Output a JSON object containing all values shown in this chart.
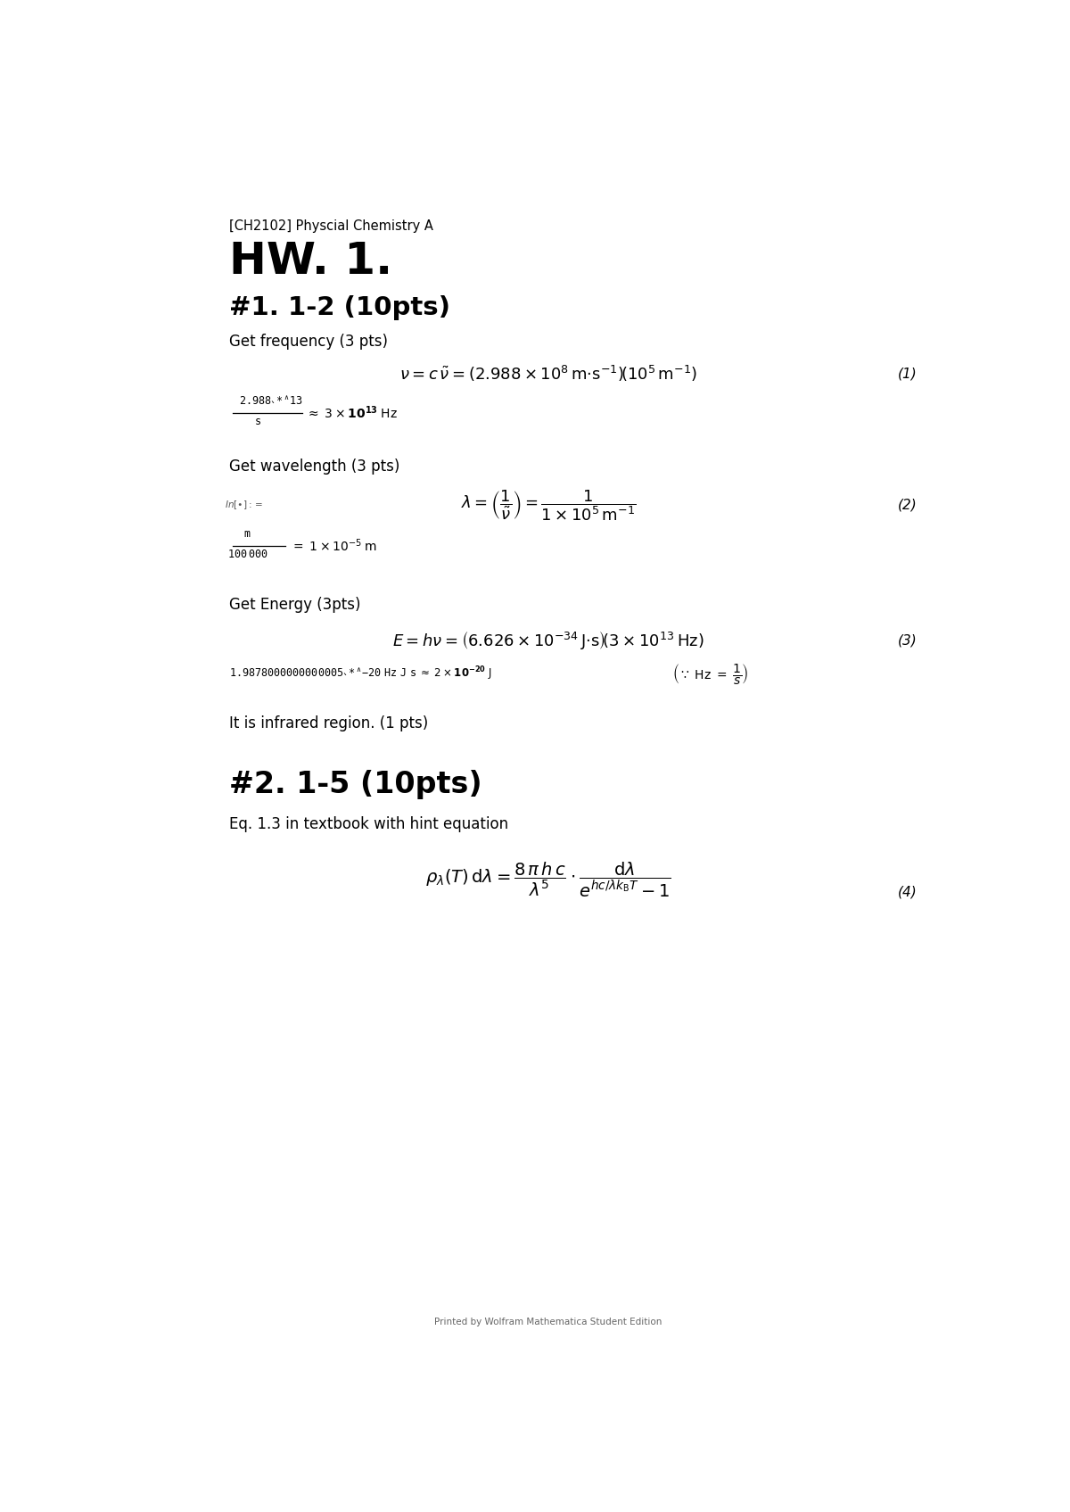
{
  "bg_color": "#ffffff",
  "text_color": "#000000",
  "page_width": 12.0,
  "page_height": 16.95,
  "header_sub": "[CH2102] Physcial Chemistry A",
  "header_main": "HW. 1.",
  "section1": "#1. 1-2 (10pts)",
  "freq_label": "Get frequency (3 pts)",
  "eq1_num": "(1)",
  "wave_label": "Get wavelength (3 pts)",
  "inf_label": "In[\\u2022]:=",
  "eq2_num": "(2)",
  "energy_label": "Get Energy (3pts)",
  "eq3_num": "(3)",
  "infrared": "It is infrared region. (1 pts)",
  "section2": "#2. 1-5 (10pts)",
  "eq4_label": "Eq. 1.3 in textbook with hint equation",
  "eq4_num": "(4)",
  "footer": "Printed by Wolfram Mathematica Student Edition"
}
